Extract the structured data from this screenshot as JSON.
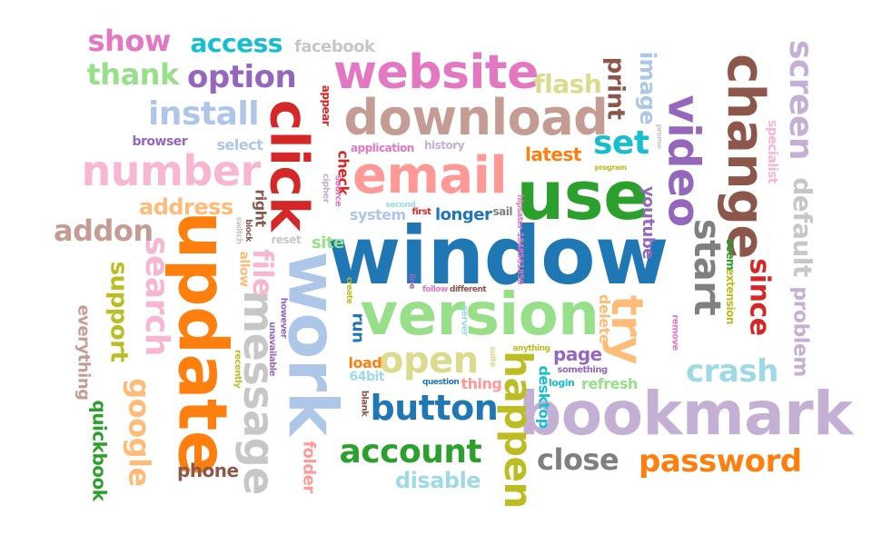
{
  "words": [
    {
      "text": "window",
      "color": "#1f77b4"
    },
    {
      "text": "work",
      "color": "#aec7e8"
    },
    {
      "text": "update",
      "color": "#ff7f0e"
    },
    {
      "text": "version",
      "color": "#98df8a"
    },
    {
      "text": "use",
      "color": "#2ca02c"
    },
    {
      "text": "bookmark",
      "color": "#c5b0d5"
    },
    {
      "text": "click",
      "color": "#d62728"
    },
    {
      "text": "email",
      "color": "#ff9896"
    },
    {
      "text": "change",
      "color": "#8c564b"
    },
    {
      "text": "download",
      "color": "#c49c94"
    },
    {
      "text": "website",
      "color": "#e377c2"
    },
    {
      "text": "video",
      "color": "#9467bd"
    },
    {
      "text": "try",
      "color": "#ffbb78"
    },
    {
      "text": "message",
      "color": "#c7c7c7"
    },
    {
      "text": "happen",
      "color": "#bcbd22"
    },
    {
      "text": "number",
      "color": "#f7b6d2"
    },
    {
      "text": "search",
      "color": "#f7b6d2"
    },
    {
      "text": "open",
      "color": "#dbdb8d"
    },
    {
      "text": "start",
      "color": "#7f7f7f"
    },
    {
      "text": "screen",
      "color": "#c5b0d5"
    },
    {
      "text": "default",
      "color": "#c7c7c7"
    },
    {
      "text": "button",
      "color": "#1f77b4"
    },
    {
      "text": "password",
      "color": "#ff7f0e"
    },
    {
      "text": "account",
      "color": "#2ca02c"
    },
    {
      "text": "install",
      "color": "#aec7e8"
    },
    {
      "text": "crash",
      "color": "#9edae5"
    },
    {
      "text": "google",
      "color": "#ffbb78"
    },
    {
      "text": "close",
      "color": "#7f7f7f"
    },
    {
      "text": "option",
      "color": "#9467bd"
    },
    {
      "text": "addon",
      "color": "#c49c94"
    },
    {
      "text": "thank",
      "color": "#98df8a"
    },
    {
      "text": "show",
      "color": "#e377c2"
    },
    {
      "text": "access",
      "color": "#17becf"
    },
    {
      "text": "set",
      "color": "#17becf"
    },
    {
      "text": "since",
      "color": "#d62728"
    },
    {
      "text": "support",
      "color": "#bcbd22"
    },
    {
      "text": "file",
      "color": "#f7b6d2"
    },
    {
      "text": "problem",
      "color": "#c5b0d5"
    },
    {
      "text": "print",
      "color": "#8c564b"
    },
    {
      "text": "image",
      "color": "#aec7e8"
    },
    {
      "text": "flash",
      "color": "#dbdb8d"
    },
    {
      "text": "disable",
      "color": "#9edae5"
    },
    {
      "text": "quickbook",
      "color": "#2ca02c"
    },
    {
      "text": "everything",
      "color": "#c49c94"
    },
    {
      "text": "latest",
      "color": "#ff7f0e"
    },
    {
      "text": "address",
      "color": "#ffbb78"
    },
    {
      "text": "youtube",
      "color": "#9467bd"
    },
    {
      "text": "refresh",
      "color": "#98df8a"
    },
    {
      "text": "page",
      "color": "#9467bd"
    },
    {
      "text": "delete",
      "color": "#ffbb78"
    },
    {
      "text": "desktop",
      "color": "#17becf"
    },
    {
      "text": "specialist",
      "color": "#f7b6d2"
    },
    {
      "text": "folder",
      "color": "#ff9896"
    },
    {
      "text": "phone",
      "color": "#8c564b"
    },
    {
      "text": "facebook",
      "color": "#c7c7c7"
    },
    {
      "text": "longer",
      "color": "#1f77b4"
    },
    {
      "text": "system",
      "color": "#aec7e8"
    },
    {
      "text": "thing",
      "color": "#ff9896"
    },
    {
      "text": "run",
      "color": "#1f77b4"
    },
    {
      "text": "load",
      "color": "#ff7f0e"
    },
    {
      "text": "64bit",
      "color": "#9edae5"
    },
    {
      "text": "site",
      "color": "#98df8a"
    },
    {
      "text": "select",
      "color": "#aec7e8"
    },
    {
      "text": "browser",
      "color": "#9467bd"
    },
    {
      "text": "right",
      "color": "#8c564b"
    },
    {
      "text": "allow",
      "color": "#ffbb78"
    },
    {
      "text": "extension",
      "color": "#bcbd22"
    },
    {
      "text": "seem",
      "color": "#2ca02c"
    },
    {
      "text": "check",
      "color": "#d62728"
    },
    {
      "text": "application",
      "color": "#e377c2"
    },
    {
      "text": "history",
      "color": "#c5b0d5"
    },
    {
      "text": "appear",
      "color": "#d62728"
    },
    {
      "text": "cipher",
      "color": "#c5b0d5"
    },
    {
      "text": "source",
      "color": "#e377c2"
    },
    {
      "text": "hipsater-1848581850",
      "color": "#e377c2"
    },
    {
      "text": "unavailable",
      "color": "#9467bd"
    },
    {
      "text": "however",
      "color": "#9467bd"
    },
    {
      "text": "recently",
      "color": "#bcbd22"
    },
    {
      "text": "blank",
      "color": "#8c564b"
    },
    {
      "text": "question",
      "color": "#1f77b4"
    },
    {
      "text": "login",
      "color": "#17becf"
    },
    {
      "text": "something",
      "color": "#9467bd"
    },
    {
      "text": "anything",
      "color": "#bcbd22"
    },
    {
      "text": "suite",
      "color": "#dbdb8d"
    },
    {
      "text": "server",
      "color": "#9edae5"
    },
    {
      "text": "different",
      "color": "#8c564b"
    },
    {
      "text": "follow",
      "color": "#e377c2"
    },
    {
      "text": "create",
      "color": "#bcbd22"
    },
    {
      "text": "line",
      "color": "#9467bd"
    },
    {
      "text": "reset",
      "color": "#c7c7c7"
    },
    {
      "text": "switch",
      "color": "#c7c7c7"
    },
    {
      "text": "block",
      "color": "#8c564b"
    },
    {
      "text": "second",
      "color": "#9edae5"
    },
    {
      "text": "first",
      "color": "#d62728"
    },
    {
      "text": "sail",
      "color": "#7f7f7f"
    },
    {
      "text": "remove",
      "color": "#e377c2"
    },
    {
      "text": "program",
      "color": "#bcbd22"
    },
    {
      "text": "promo",
      "color": "#c7c7c7"
    }
  ]
}
